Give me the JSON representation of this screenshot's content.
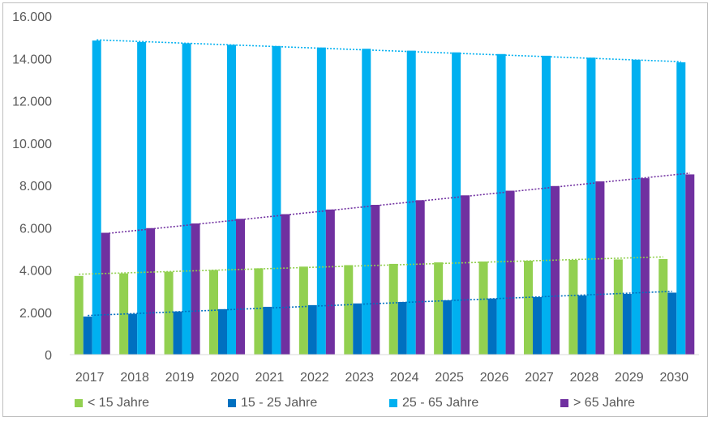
{
  "chart_data": {
    "type": "bar",
    "categories": [
      "2017",
      "2018",
      "2019",
      "2020",
      "2021",
      "2022",
      "2023",
      "2024",
      "2025",
      "2026",
      "2027",
      "2028",
      "2029",
      "2030"
    ],
    "yticks": [
      "0",
      "2.000",
      "4.000",
      "6.000",
      "8.000",
      "10.000",
      "12.000",
      "14.000",
      "16.000"
    ],
    "ylim": [
      0,
      16000
    ],
    "grid": false,
    "legend_position": "bottom",
    "trendlines": "dotted linear trendline per series",
    "series": [
      {
        "name": "< 15 Jahre",
        "color": "#92d050",
        "values": [
          3720,
          3840,
          3920,
          4000,
          4080,
          4160,
          4230,
          4290,
          4360,
          4400,
          4440,
          4480,
          4500,
          4520
        ],
        "trend": [
          3800,
          4620
        ]
      },
      {
        "name": "15 - 25 Jahre",
        "color": "#0070c0",
        "values": [
          1800,
          1930,
          2040,
          2150,
          2260,
          2340,
          2420,
          2490,
          2570,
          2650,
          2720,
          2800,
          2870,
          2930
        ],
        "trend": [
          1850,
          2990
        ]
      },
      {
        "name": "25 - 65 Jahre",
        "color": "#00b0f0",
        "values": [
          14850,
          14780,
          14720,
          14650,
          14590,
          14520,
          14460,
          14370,
          14290,
          14210,
          14130,
          14040,
          13940,
          13820
        ],
        "trend": [
          14880,
          13850
        ]
      },
      {
        "name": "> 65 Jahre",
        "color": "#7030a0",
        "values": [
          5760,
          5980,
          6200,
          6420,
          6640,
          6860,
          7080,
          7300,
          7530,
          7750,
          7970,
          8190,
          8340,
          8520
        ],
        "trend": [
          5720,
          8580
        ]
      }
    ]
  }
}
